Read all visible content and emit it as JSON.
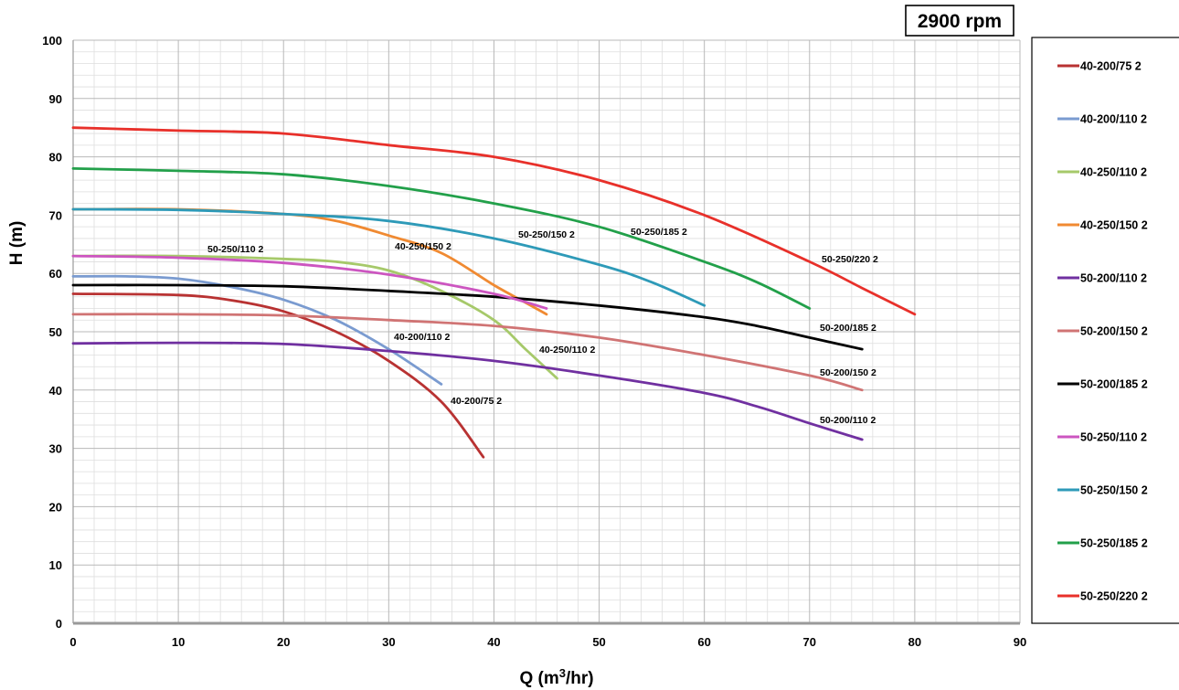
{
  "chart_data": {
    "type": "line",
    "title": "2900 rpm",
    "xlabel": "Q (m³/hr)",
    "ylabel": "H (m)",
    "xlim": [
      0,
      90
    ],
    "ylim": [
      0,
      100
    ],
    "x_ticks": [
      "0",
      "10",
      "20",
      "30",
      "40",
      "50",
      "60",
      "70",
      "80",
      "90"
    ],
    "y_ticks": [
      "0",
      "10",
      "20",
      "30",
      "40",
      "50",
      "60",
      "70",
      "80",
      "90",
      "100"
    ],
    "grid": true,
    "legend_position": "right",
    "series": [
      {
        "name": "40-200/75 2",
        "label": "40-200/75 2",
        "color": "#b83232",
        "x": [
          0,
          10,
          15,
          20,
          25,
          30,
          35,
          39
        ],
        "y": [
          56.5,
          56.3,
          55.4,
          53.5,
          50,
          45,
          38,
          28.5
        ]
      },
      {
        "name": "40-200/110 2",
        "label": "40-200/110 2",
        "color": "#7a9bd0",
        "x": [
          0,
          5,
          10,
          15,
          20,
          25,
          30,
          35
        ],
        "y": [
          59.5,
          59.5,
          59.1,
          57.7,
          55.5,
          52,
          47,
          41
        ]
      },
      {
        "name": "40-250/110 2",
        "label": "40-250/110 2",
        "color": "#a6c96a",
        "x": [
          0,
          10,
          20,
          25,
          30,
          35,
          40,
          43,
          46
        ],
        "y": [
          63,
          63,
          62.5,
          62,
          60.5,
          57,
          52,
          47,
          42
        ]
      },
      {
        "name": "40-250/150 2",
        "label": "40-250/150 2",
        "color": "#f08a32",
        "x": [
          0,
          10,
          20,
          25,
          30,
          35,
          40,
          43,
          45
        ],
        "y": [
          71,
          71,
          70.2,
          69,
          66.5,
          63.5,
          58,
          55,
          53
        ]
      },
      {
        "name": "50-200/110 2",
        "label": "50-200/110 2",
        "color": "#7030a0",
        "x": [
          0,
          10,
          20,
          30,
          40,
          50,
          60,
          65,
          70,
          75
        ],
        "y": [
          48,
          48.1,
          47.9,
          46.7,
          45,
          42.5,
          39.5,
          37.2,
          34.3,
          31.5
        ]
      },
      {
        "name": "50-200/150 2",
        "label": "50-200/150 2",
        "color": "#d07474",
        "x": [
          0,
          10,
          20,
          30,
          40,
          50,
          60,
          70,
          75
        ],
        "y": [
          53,
          53,
          52.8,
          52,
          51,
          49,
          46,
          42.5,
          40
        ]
      },
      {
        "name": "50-200/185 2",
        "label": "50-200/185 2",
        "color": "#000000",
        "x": [
          0,
          10,
          20,
          30,
          40,
          50,
          60,
          65,
          70,
          75
        ],
        "y": [
          58,
          58,
          57.8,
          57,
          56,
          54.5,
          52.5,
          51,
          49,
          47
        ]
      },
      {
        "name": "50-250/110 2",
        "label": "50-250/110 2",
        "color": "#cc55c0",
        "x": [
          0,
          10,
          20,
          30,
          40,
          45
        ],
        "y": [
          63,
          62.7,
          61.8,
          59.8,
          56.5,
          54
        ]
      },
      {
        "name": "50-250/150 2",
        "label": "50-250/150 2",
        "color": "#2e9ab8",
        "x": [
          0,
          10,
          20,
          30,
          40,
          50,
          55,
          60
        ],
        "y": [
          71,
          70.9,
          70.2,
          69,
          66,
          61.5,
          58.5,
          54.5
        ]
      },
      {
        "name": "50-250/185 2",
        "label": "50-250/185 2",
        "color": "#22a04a",
        "x": [
          0,
          10,
          20,
          30,
          40,
          50,
          60,
          65,
          70
        ],
        "y": [
          78,
          77.6,
          77,
          75,
          72,
          68,
          62,
          58.5,
          54
        ]
      },
      {
        "name": "50-250/220 2",
        "label": "50-250/220 2",
        "color": "#e8302a",
        "x": [
          0,
          10,
          20,
          30,
          40,
          50,
          60,
          70,
          75,
          80
        ],
        "y": [
          85,
          84.5,
          84,
          82,
          80,
          76,
          70,
          62,
          57.5,
          53
        ]
      }
    ]
  }
}
